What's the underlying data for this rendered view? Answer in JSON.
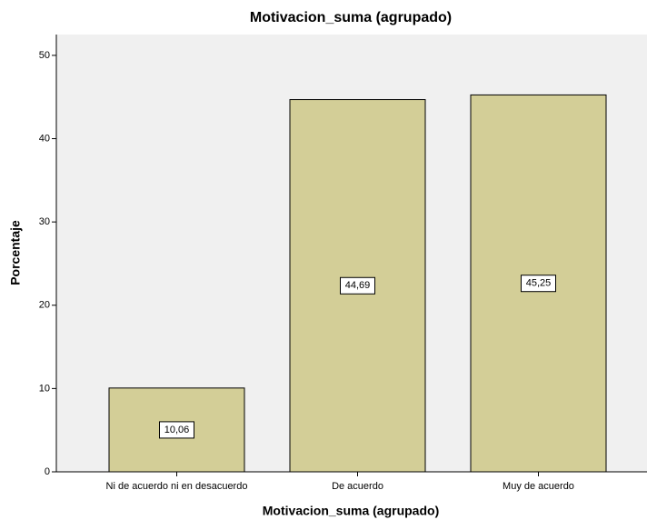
{
  "chart_data": {
    "type": "bar",
    "title": "Motivacion_suma (agrupado)",
    "x_label": "Motivacion_suma (agrupado)",
    "y_label": "Porcentaje",
    "categories": [
      "Ni de acuerdo ni en desacuerdo",
      "De acuerdo",
      "Muy de acuerdo"
    ],
    "values": [
      10.06,
      44.69,
      45.25
    ],
    "value_labels": [
      "10,06",
      "44,69",
      "45,25"
    ],
    "color": "#d3ce97",
    "ylim": [
      0,
      52.5
    ],
    "yticks": [
      0,
      10,
      20,
      30,
      40,
      50
    ],
    "grid": false
  }
}
